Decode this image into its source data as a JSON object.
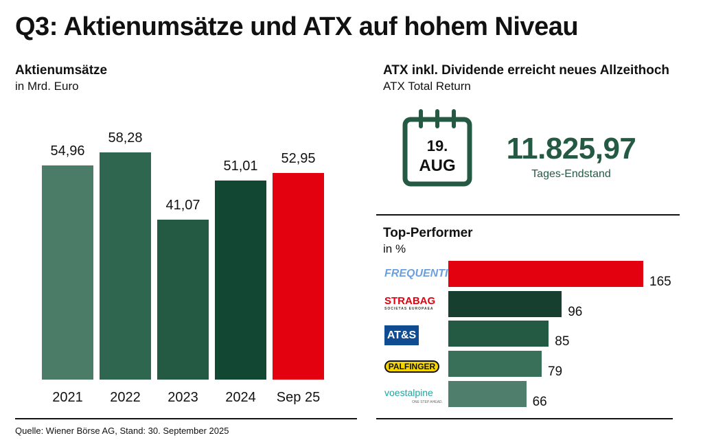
{
  "title": "Q3: Aktienumsätze und ATX auf hohem Niveau",
  "left": {
    "heading": "Aktienumsätze",
    "subheading": "in Mrd. Euro"
  },
  "right_top": {
    "heading": "ATX inkl. Dividende erreicht neues Allzeithoch",
    "subheading": "ATX Total Return",
    "calendar_day": "19.",
    "calendar_month": "AUG",
    "value": "11.825,97",
    "value_label": "Tages-Endstand",
    "accent": "#245a44"
  },
  "right_bottom": {
    "heading": "Top-Performer",
    "subheading": "in %"
  },
  "footer": "Quelle: Wiener Börse AG, Stand: 30. September 2025",
  "chart_data": [
    {
      "type": "bar",
      "categories": [
        "2021",
        "2022",
        "2023",
        "2024",
        "Sep 25"
      ],
      "values": [
        54.96,
        58.28,
        41.07,
        51.01,
        52.95
      ],
      "data_labels": [
        "54,96",
        "58,28",
        "41,07",
        "51,01",
        "52,95"
      ],
      "colors": [
        "#4a7c68",
        "#2f6650",
        "#245a44",
        "#124833",
        "#e3000f"
      ],
      "title": "Aktienumsätze",
      "ylabel": "in Mrd. Euro",
      "ylim": [
        0,
        60
      ],
      "grid": false
    },
    {
      "type": "bar",
      "orientation": "horizontal",
      "categories": [
        "FREQUENTIS",
        "STRABAG",
        "AT&S",
        "PALFINGER",
        "voestalpine"
      ],
      "category_sublabels": [
        "",
        "SOCIETAS EUROPAEA",
        "",
        "",
        "ONE STEP AHEAD."
      ],
      "values": [
        165,
        96,
        85,
        79,
        66
      ],
      "data_labels": [
        "165",
        "96",
        "85",
        "79",
        "66"
      ],
      "colors": [
        "#e3000f",
        "#173f2f",
        "#245a44",
        "#39705a",
        "#4f7f6c"
      ],
      "title": "Top-Performer",
      "xlabel": "in %",
      "xlim": [
        0,
        165
      ],
      "grid": false
    }
  ]
}
